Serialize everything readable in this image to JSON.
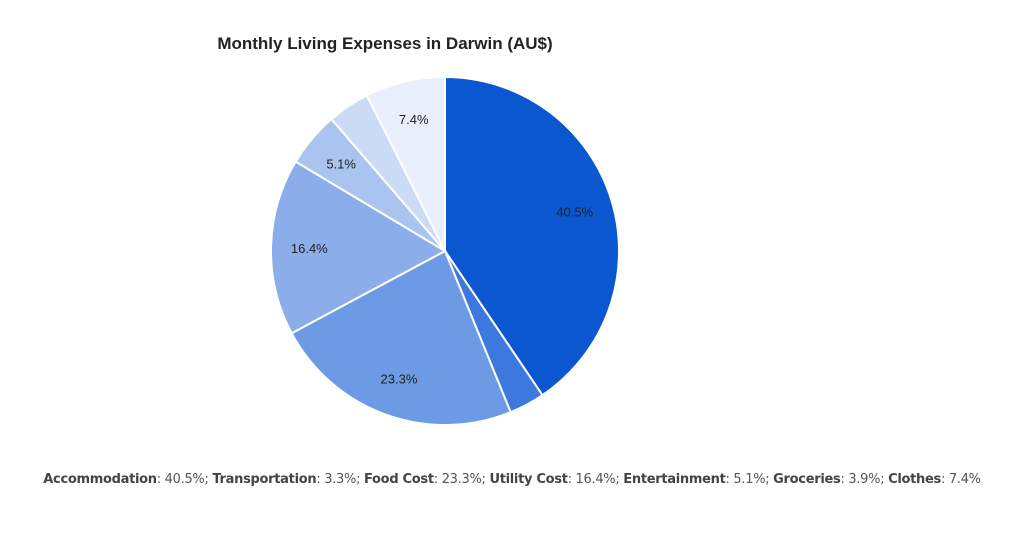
{
  "chart_data": {
    "type": "pie",
    "title": "Monthly Living Expenses in Darwin (AU$)",
    "slices": [
      {
        "label": "Accommodation",
        "value": 40.5,
        "display": "40.5%",
        "color": "#0b57d0",
        "show_label": true
      },
      {
        "label": "Transportation",
        "value": 3.3,
        "display": "3.3%",
        "color": "#3d78df",
        "show_label": false
      },
      {
        "label": "Food Cost",
        "value": 23.3,
        "display": "23.3%",
        "color": "#6d9ae4",
        "show_label": true
      },
      {
        "label": "Utility Cost",
        "value": 16.4,
        "display": "16.4%",
        "color": "#8badea",
        "show_label": true
      },
      {
        "label": "Entertainment",
        "value": 5.1,
        "display": "5.1%",
        "color": "#a9c4ef",
        "show_label": true
      },
      {
        "label": "Groceries",
        "value": 3.9,
        "display": "3.9%",
        "color": "#cbdbf5",
        "show_label": false
      },
      {
        "label": "Clothes",
        "value": 7.4,
        "display": "7.4%",
        "color": "#e8eefa",
        "show_label": true
      }
    ],
    "start_angle": "12 o'clock",
    "direction": "clockwise",
    "legend": "none"
  },
  "caption": {
    "items": [
      {
        "label": "Accommodation",
        "value": "40.5%"
      },
      {
        "label": "Transportation",
        "value": "3.3%"
      },
      {
        "label": "Food Cost",
        "value": "23.3%"
      },
      {
        "label": "Utility Cost",
        "value": "16.4%"
      },
      {
        "label": "Entertainment",
        "value": "5.1%"
      },
      {
        "label": "Groceries",
        "value": "3.9%"
      },
      {
        "label": "Clothes",
        "value": "7.4%"
      }
    ]
  }
}
